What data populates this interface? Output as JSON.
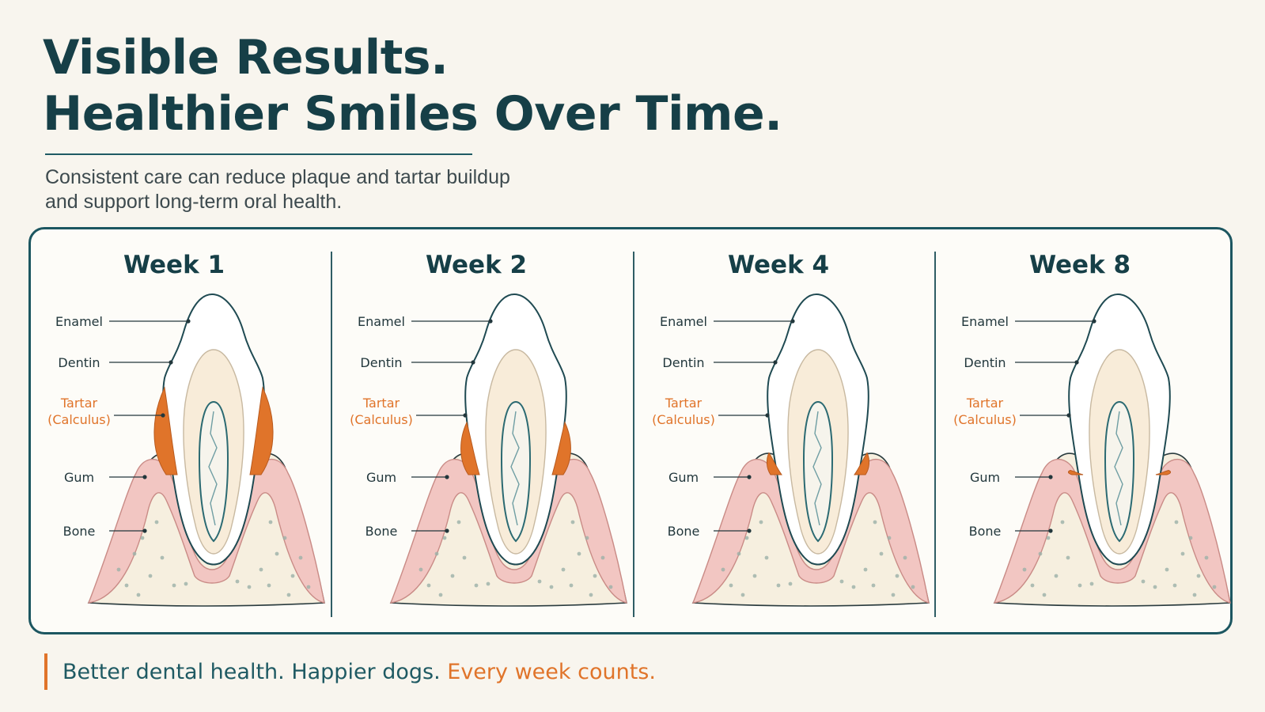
{
  "header": {
    "title_line1": "Visible Results.",
    "title_line2": "Healthier Smiles Over Time.",
    "subtitle_line1": "Consistent care can reduce plaque and tartar buildup",
    "subtitle_line2": "and support long-term oral health."
  },
  "labels": {
    "enamel": "Enamel",
    "dentin": "Dentin",
    "tartar_line1": "Tartar",
    "tartar_line2": "(Calculus)",
    "gum": "Gum",
    "bone": "Bone"
  },
  "panels": [
    {
      "title": "Week 1",
      "tartar_level": 1.0
    },
    {
      "title": "Week 2",
      "tartar_level": 0.6
    },
    {
      "title": "Week 4",
      "tartar_level": 0.25
    },
    {
      "title": "Week 8",
      "tartar_level": 0.05
    }
  ],
  "footer": {
    "text_main": "Better dental health. Happier dogs. ",
    "text_accent": "Every week counts."
  },
  "colors": {
    "heading": "#163f47",
    "teal": "#1f5a63",
    "tartar": "#e0742a",
    "gum": "#f2c6c2",
    "bone": "#f6efdf",
    "enamel": "#ffffff"
  }
}
